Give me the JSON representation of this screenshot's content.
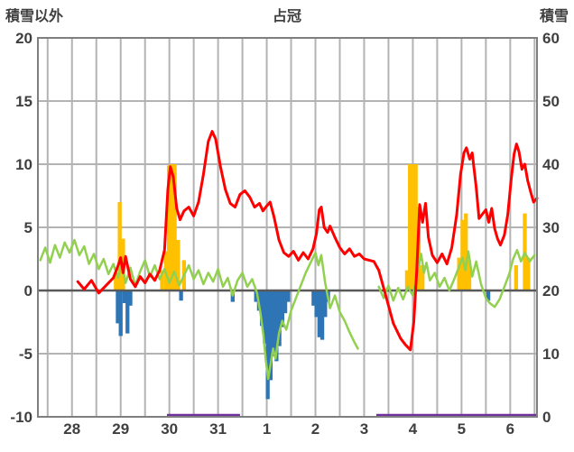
{
  "page": {
    "background": "#ffffff"
  },
  "chart_data": {
    "type": "line",
    "title": "占冠",
    "left_axis": {
      "label": "積雪以外",
      "min": -10,
      "max": 20,
      "tick_step": 5,
      "ticks": [
        20,
        15,
        10,
        5,
        0,
        -5,
        -10
      ]
    },
    "right_axis": {
      "label": "積雪",
      "min": 0,
      "max": 60,
      "tick_step": 10,
      "ticks": [
        60,
        50,
        40,
        30,
        20,
        10,
        0
      ]
    },
    "x_axis": {
      "range": [
        -0.7,
        9.55
      ],
      "grid_start": -0.5,
      "grid_step": 0.5,
      "tick_labels": [
        "28",
        "29",
        "30",
        "31",
        "1",
        "2",
        "3",
        "4",
        "5",
        "6"
      ],
      "tick_positions": [
        0,
        1,
        2,
        3,
        4,
        5,
        6,
        7,
        8,
        9
      ]
    },
    "grid": {
      "color": "#b3b3b3",
      "zero_line_color": "#595959",
      "frame_color": "#7f7f7f"
    },
    "text_color": "#3f3f3f",
    "legend": "none",
    "series": [
      {
        "name": "orange-bars",
        "type": "bar",
        "axis": "left",
        "color": "#ffc000",
        "bar_width": 0.08,
        "values": [
          [
            0.9,
            1.4
          ],
          [
            0.98,
            7.0
          ],
          [
            1.05,
            4.1
          ],
          [
            1.85,
            1.6
          ],
          [
            1.93,
            3.1
          ],
          [
            1.99,
            9.9
          ],
          [
            2.05,
            10.0
          ],
          [
            2.11,
            10.0
          ],
          [
            2.18,
            4.0
          ],
          [
            2.3,
            2.4
          ],
          [
            6.88,
            1.6
          ],
          [
            6.94,
            10.0
          ],
          [
            7.0,
            10.0
          ],
          [
            7.06,
            10.0
          ],
          [
            7.12,
            6.6
          ],
          [
            7.2,
            2.0
          ],
          [
            7.95,
            2.6
          ],
          [
            8.02,
            5.6
          ],
          [
            8.09,
            6.1
          ],
          [
            8.16,
            2.4
          ],
          [
            9.12,
            2.0
          ],
          [
            9.3,
            6.1
          ],
          [
            9.37,
            2.6
          ]
        ]
      },
      {
        "name": "blue-bars",
        "type": "bar",
        "axis": "left",
        "color": "#2e75b6",
        "bar_width": 0.08,
        "values": [
          [
            0.94,
            -2.6
          ],
          [
            1.0,
            -3.6
          ],
          [
            1.08,
            -1.0
          ],
          [
            1.14,
            -3.4
          ],
          [
            1.2,
            -1.2
          ],
          [
            2.24,
            -0.8
          ],
          [
            3.3,
            -0.9
          ],
          [
            3.78,
            -0.9
          ],
          [
            3.84,
            -1.6
          ],
          [
            3.9,
            -2.8
          ],
          [
            3.96,
            -4.2
          ],
          [
            4.02,
            -8.6
          ],
          [
            4.08,
            -7.1
          ],
          [
            4.14,
            -5.2
          ],
          [
            4.2,
            -5.6
          ],
          [
            4.26,
            -4.4
          ],
          [
            4.32,
            -2.9
          ],
          [
            4.38,
            -1.8
          ],
          [
            4.44,
            -0.9
          ],
          [
            4.96,
            -1.2
          ],
          [
            5.02,
            -2.1
          ],
          [
            5.08,
            -3.7
          ],
          [
            5.14,
            -3.9
          ],
          [
            5.2,
            -2.1
          ],
          [
            5.26,
            -0.9
          ],
          [
            8.55,
            -0.8
          ]
        ]
      },
      {
        "name": "purple-line",
        "type": "baseline",
        "axis": "left",
        "color": "#7030a0",
        "width": 3.5,
        "y": -10,
        "segments": [
          [
            1.95,
            3.45
          ],
          [
            6.25,
            9.55
          ]
        ]
      },
      {
        "name": "green-line",
        "type": "line",
        "axis": "left",
        "color": "#92d050",
        "width": 2.5,
        "segments": [
          [
            [
              -0.65,
              2.4
            ],
            [
              -0.55,
              3.4
            ],
            [
              -0.45,
              2.2
            ],
            [
              -0.35,
              3.6
            ],
            [
              -0.25,
              2.6
            ],
            [
              -0.15,
              3.8
            ],
            [
              -0.05,
              3.0
            ],
            [
              0.05,
              4.0
            ],
            [
              0.15,
              2.8
            ],
            [
              0.25,
              3.5
            ],
            [
              0.35,
              2.1
            ],
            [
              0.45,
              2.9
            ],
            [
              0.55,
              1.7
            ],
            [
              0.65,
              2.5
            ],
            [
              0.75,
              1.3
            ],
            [
              0.85,
              2.1
            ],
            [
              0.95,
              1.0
            ],
            [
              1.02,
              2.3
            ],
            [
              1.1,
              0.6
            ],
            [
              1.2,
              1.8
            ],
            [
              1.3,
              0.4
            ],
            [
              1.4,
              1.5
            ],
            [
              1.5,
              2.4
            ],
            [
              1.6,
              1.1
            ],
            [
              1.7,
              2.0
            ],
            [
              1.8,
              0.9
            ],
            [
              1.9,
              1.7
            ],
            [
              2.0,
              0.6
            ],
            [
              2.1,
              1.5
            ],
            [
              2.2,
              0.4
            ],
            [
              2.3,
              1.2
            ],
            [
              2.4,
              2.0
            ],
            [
              2.5,
              0.9
            ],
            [
              2.6,
              1.6
            ],
            [
              2.7,
              0.5
            ],
            [
              2.8,
              1.4
            ],
            [
              2.9,
              0.7
            ],
            [
              3.0,
              1.7
            ],
            [
              3.1,
              0.3
            ],
            [
              3.2,
              1.0
            ],
            [
              3.3,
              -0.4
            ],
            [
              3.4,
              0.8
            ],
            [
              3.5,
              1.4
            ],
            [
              3.6,
              0.3
            ],
            [
              3.7,
              0.9
            ],
            [
              3.8,
              -0.2
            ],
            [
              3.87,
              -1.8
            ],
            [
              3.93,
              -3.5
            ],
            [
              3.98,
              -5.5
            ],
            [
              4.03,
              -7.0
            ],
            [
              4.08,
              -5.8
            ],
            [
              4.13,
              -4.6
            ],
            [
              4.18,
              -5.4
            ],
            [
              4.25,
              -3.4
            ],
            [
              4.32,
              -2.4
            ],
            [
              4.4,
              -3.1
            ],
            [
              4.5,
              -1.6
            ],
            [
              4.6,
              -0.6
            ],
            [
              4.7,
              0.4
            ],
            [
              4.8,
              1.4
            ],
            [
              4.9,
              2.2
            ],
            [
              5.0,
              3.0
            ],
            [
              5.06,
              2.0
            ],
            [
              5.12,
              2.8
            ],
            [
              5.2,
              0.6
            ],
            [
              5.3,
              -1.4
            ],
            [
              5.4,
              -0.4
            ],
            [
              5.5,
              -1.7
            ],
            [
              5.6,
              -2.4
            ],
            [
              5.7,
              -3.3
            ],
            [
              5.8,
              -4.1
            ],
            [
              5.87,
              -4.6
            ]
          ],
          [
            [
              6.3,
              0.3
            ],
            [
              6.4,
              -0.6
            ],
            [
              6.5,
              0.4
            ],
            [
              6.6,
              -0.8
            ],
            [
              6.7,
              0.2
            ],
            [
              6.8,
              -0.7
            ],
            [
              6.9,
              0.3
            ],
            [
              7.0,
              -0.4
            ],
            [
              7.06,
              0.7
            ],
            [
              7.12,
              2.0
            ],
            [
              7.17,
              2.9
            ],
            [
              7.23,
              1.4
            ],
            [
              7.28,
              2.2
            ],
            [
              7.35,
              0.8
            ],
            [
              7.45,
              1.4
            ],
            [
              7.55,
              0.3
            ],
            [
              7.65,
              1.0
            ],
            [
              7.75,
              0.0
            ],
            [
              7.85,
              0.9
            ],
            [
              7.95,
              1.9
            ],
            [
              8.02,
              2.6
            ],
            [
              8.08,
              1.6
            ],
            [
              8.14,
              3.1
            ],
            [
              8.22,
              1.1
            ],
            [
              8.3,
              2.3
            ],
            [
              8.4,
              0.5
            ],
            [
              8.5,
              -0.6
            ],
            [
              8.58,
              -1.0
            ],
            [
              8.68,
              -1.3
            ],
            [
              8.78,
              -0.7
            ],
            [
              8.88,
              0.3
            ],
            [
              8.98,
              1.3
            ],
            [
              9.06,
              2.5
            ],
            [
              9.14,
              3.2
            ],
            [
              9.22,
              2.3
            ],
            [
              9.3,
              3.0
            ],
            [
              9.4,
              2.3
            ],
            [
              9.5,
              2.8
            ]
          ]
        ]
      },
      {
        "name": "red-line",
        "type": "line",
        "axis": "left",
        "color": "#ff0000",
        "width": 3,
        "segments": [
          [
            [
              0.12,
              0.7
            ],
            [
              0.25,
              0.1
            ],
            [
              0.4,
              0.8
            ],
            [
              0.55,
              -0.2
            ],
            [
              0.7,
              0.4
            ],
            [
              0.85,
              1.0
            ],
            [
              0.95,
              2.0
            ],
            [
              1.0,
              2.6
            ],
            [
              1.05,
              1.4
            ],
            [
              1.1,
              2.7
            ],
            [
              1.2,
              0.9
            ],
            [
              1.3,
              0.3
            ],
            [
              1.4,
              1.1
            ],
            [
              1.5,
              0.6
            ],
            [
              1.6,
              1.3
            ],
            [
              1.7,
              0.8
            ],
            [
              1.8,
              1.6
            ],
            [
              1.9,
              3.2
            ],
            [
              1.97,
              8.0
            ],
            [
              2.02,
              9.8
            ],
            [
              2.08,
              9.0
            ],
            [
              2.15,
              6.5
            ],
            [
              2.22,
              5.6
            ],
            [
              2.3,
              6.3
            ],
            [
              2.4,
              6.6
            ],
            [
              2.5,
              5.9
            ],
            [
              2.6,
              7.0
            ],
            [
              2.7,
              9.2
            ],
            [
              2.8,
              11.8
            ],
            [
              2.88,
              12.6
            ],
            [
              2.95,
              12.0
            ],
            [
              3.05,
              9.8
            ],
            [
              3.15,
              8.0
            ],
            [
              3.25,
              6.9
            ],
            [
              3.35,
              6.6
            ],
            [
              3.45,
              7.6
            ],
            [
              3.55,
              7.9
            ],
            [
              3.65,
              7.4
            ],
            [
              3.75,
              6.6
            ],
            [
              3.85,
              6.9
            ],
            [
              3.92,
              6.3
            ],
            [
              4.0,
              6.7
            ],
            [
              4.07,
              7.0
            ],
            [
              4.15,
              5.8
            ],
            [
              4.25,
              4.0
            ],
            [
              4.35,
              3.0
            ],
            [
              4.45,
              2.7
            ],
            [
              4.55,
              3.1
            ],
            [
              4.65,
              2.4
            ],
            [
              4.75,
              3.0
            ],
            [
              4.85,
              2.5
            ],
            [
              4.95,
              3.3
            ],
            [
              5.02,
              4.5
            ],
            [
              5.08,
              6.4
            ],
            [
              5.12,
              6.6
            ],
            [
              5.18,
              5.0
            ],
            [
              5.25,
              4.6
            ],
            [
              5.3,
              5.1
            ],
            [
              5.4,
              4.2
            ],
            [
              5.5,
              3.4
            ],
            [
              5.6,
              2.9
            ],
            [
              5.7,
              3.3
            ],
            [
              5.8,
              2.7
            ],
            [
              5.9,
              2.9
            ],
            [
              6.0,
              2.5
            ],
            [
              6.1,
              2.4
            ],
            [
              6.2,
              2.3
            ],
            [
              6.3,
              1.6
            ],
            [
              6.45,
              -0.5
            ],
            [
              6.6,
              -2.6
            ],
            [
              6.75,
              -3.8
            ],
            [
              6.85,
              -4.3
            ],
            [
              6.95,
              -4.7
            ],
            [
              7.02,
              -2.5
            ],
            [
              7.08,
              1.5
            ],
            [
              7.14,
              6.8
            ],
            [
              7.2,
              5.4
            ],
            [
              7.26,
              6.9
            ],
            [
              7.32,
              4.2
            ],
            [
              7.4,
              2.8
            ],
            [
              7.5,
              2.2
            ],
            [
              7.6,
              2.9
            ],
            [
              7.7,
              2.1
            ],
            [
              7.8,
              3.4
            ],
            [
              7.9,
              6.0
            ],
            [
              7.98,
              9.2
            ],
            [
              8.05,
              10.9
            ],
            [
              8.1,
              11.3
            ],
            [
              8.17,
              10.4
            ],
            [
              8.22,
              10.9
            ],
            [
              8.3,
              8.2
            ],
            [
              8.36,
              5.7
            ],
            [
              8.42,
              6.0
            ],
            [
              8.5,
              6.4
            ],
            [
              8.56,
              5.4
            ],
            [
              8.62,
              6.5
            ],
            [
              8.68,
              4.9
            ],
            [
              8.74,
              4.1
            ],
            [
              8.8,
              3.6
            ],
            [
              8.88,
              4.4
            ],
            [
              8.95,
              6.0
            ],
            [
              9.02,
              8.8
            ],
            [
              9.08,
              10.8
            ],
            [
              9.13,
              11.6
            ],
            [
              9.18,
              11.0
            ],
            [
              9.24,
              9.6
            ],
            [
              9.3,
              10.0
            ],
            [
              9.36,
              8.7
            ],
            [
              9.42,
              7.8
            ],
            [
              9.48,
              7.0
            ],
            [
              9.55,
              7.3
            ]
          ]
        ]
      }
    ]
  }
}
